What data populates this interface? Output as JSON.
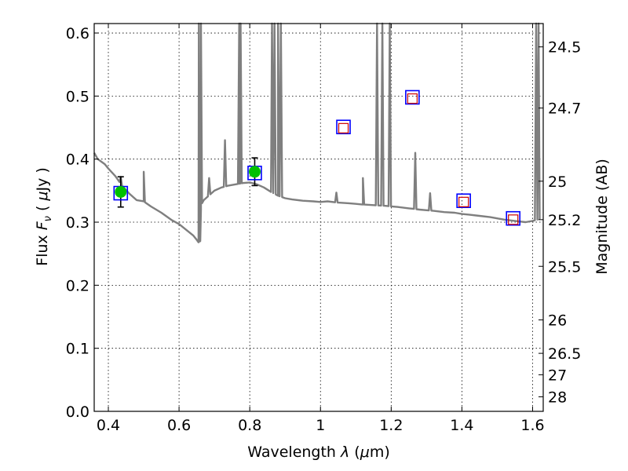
{
  "chart_data": {
    "type": "scatter",
    "title": "",
    "xlabel_prefix": "Wavelength ",
    "xlabel_var": "λ",
    "xlabel_unit_open": " (",
    "xlabel_unit_mu": "μ",
    "xlabel_unit_close": "m)",
    "ylabel_prefix": "Flux  ",
    "ylabel_var": "F",
    "ylabel_sub": "ν",
    "ylabel_unit_open": "  ( ",
    "ylabel_unit_mu": "μ",
    "ylabel_unit_close": "Jy )",
    "y2label": "Magnitude (AB)",
    "xlim": [
      0.36,
      1.63
    ],
    "ylim": [
      0.0,
      0.615
    ],
    "grid": true,
    "grid_style": "dotted",
    "xticks": [
      0.4,
      0.6,
      0.8,
      1.0,
      1.2,
      1.4,
      1.6
    ],
    "xtick_labels": [
      "0.4",
      "0.6",
      "0.8",
      "1",
      "1.2",
      "1.4",
      "1.6"
    ],
    "yticks": [
      0.0,
      0.1,
      0.2,
      0.3,
      0.4,
      0.5,
      0.6
    ],
    "ytick_labels": [
      "0.0",
      "0.1",
      "0.2",
      "0.3",
      "0.4",
      "0.5",
      "0.6"
    ],
    "y2ticks": [
      {
        "label": "24.5",
        "flux": 0.578
      },
      {
        "label": "24.7",
        "flux": 0.481
      },
      {
        "label": "25",
        "flux": 0.365
      },
      {
        "label": "25.2",
        "flux": 0.304
      },
      {
        "label": "25.5",
        "flux": 0.23
      },
      {
        "label": "26",
        "flux": 0.145
      },
      {
        "label": "26.5",
        "flux": 0.092
      },
      {
        "label": "27",
        "flux": 0.058
      },
      {
        "label": "28",
        "flux": 0.023
      }
    ],
    "colors": {
      "model": "#7f7f7f",
      "observed": "#00c000",
      "model_box": "#0000ff",
      "predicted": "#cc0000",
      "errorbar": "#000000",
      "grid": "#000000"
    },
    "model_spectrum": {
      "name": "",
      "x": [
        0.36,
        0.365,
        0.37,
        0.375,
        0.38,
        0.39,
        0.4,
        0.42,
        0.44,
        0.46,
        0.48,
        0.5,
        0.52,
        0.55,
        0.58,
        0.6,
        0.62,
        0.64,
        0.65,
        0.655,
        0.66,
        0.662,
        0.665,
        0.67,
        0.68,
        0.7,
        0.72,
        0.74,
        0.76,
        0.78,
        0.8,
        0.82,
        0.84,
        0.86,
        0.88,
        0.9,
        0.92,
        0.95,
        0.98,
        1.0,
        1.02,
        1.05,
        1.08,
        1.1,
        1.12,
        1.15,
        1.18,
        1.2,
        1.22,
        1.25,
        1.28,
        1.3,
        1.32,
        1.35,
        1.38,
        1.4,
        1.42,
        1.45,
        1.48,
        1.5,
        1.52,
        1.55,
        1.58,
        1.6,
        1.62
      ],
      "y": [
        0.41,
        0.405,
        0.4,
        0.398,
        0.396,
        0.392,
        0.385,
        0.373,
        0.357,
        0.345,
        0.335,
        0.333,
        0.325,
        0.315,
        0.303,
        0.297,
        0.288,
        0.279,
        0.272,
        0.268,
        0.27,
        0.32,
        0.33,
        0.335,
        0.34,
        0.35,
        0.355,
        0.358,
        0.36,
        0.362,
        0.363,
        0.36,
        0.355,
        0.348,
        0.342,
        0.338,
        0.336,
        0.334,
        0.333,
        0.332,
        0.333,
        0.331,
        0.33,
        0.329,
        0.328,
        0.327,
        0.326,
        0.325,
        0.324,
        0.322,
        0.32,
        0.319,
        0.318,
        0.316,
        0.315,
        0.313,
        0.312,
        0.31,
        0.308,
        0.306,
        0.304,
        0.302,
        0.3,
        0.302,
        0.305
      ],
      "spikes": [
        {
          "x": 0.435,
          "peak": 0.372
        },
        {
          "x": 0.5,
          "peak": 0.38
        },
        {
          "x": 0.656,
          "peak": 0.62
        },
        {
          "x": 0.662,
          "peak": 0.62
        },
        {
          "x": 0.685,
          "peak": 0.37
        },
        {
          "x": 0.73,
          "peak": 0.43
        },
        {
          "x": 0.77,
          "peak": 0.62
        },
        {
          "x": 0.774,
          "peak": 0.62
        },
        {
          "x": 0.863,
          "peak": 0.62
        },
        {
          "x": 0.87,
          "peak": 0.62
        },
        {
          "x": 0.88,
          "peak": 0.62
        },
        {
          "x": 0.888,
          "peak": 0.62
        },
        {
          "x": 1.045,
          "peak": 0.347
        },
        {
          "x": 1.12,
          "peak": 0.37
        },
        {
          "x": 1.16,
          "peak": 0.62
        },
        {
          "x": 1.175,
          "peak": 0.62
        },
        {
          "x": 1.196,
          "peak": 0.62
        },
        {
          "x": 1.268,
          "peak": 0.41
        },
        {
          "x": 1.31,
          "peak": 0.346
        },
        {
          "x": 1.61,
          "peak": 0.62
        },
        {
          "x": 1.617,
          "peak": 0.62
        }
      ]
    },
    "observed": {
      "name": "",
      "points": [
        {
          "x": 0.435,
          "y": 0.348,
          "err": 0.024
        },
        {
          "x": 0.814,
          "y": 0.38,
          "err": 0.022
        }
      ]
    },
    "model_boxes": {
      "name": "",
      "points": [
        {
          "x": 0.435,
          "y": 0.346
        },
        {
          "x": 0.814,
          "y": 0.378
        },
        {
          "x": 1.065,
          "y": 0.451
        },
        {
          "x": 1.26,
          "y": 0.498
        },
        {
          "x": 1.405,
          "y": 0.334
        },
        {
          "x": 1.545,
          "y": 0.306
        }
      ]
    },
    "predicted": {
      "name": "",
      "points": [
        {
          "x": 1.065,
          "y": 0.449
        },
        {
          "x": 1.26,
          "y": 0.496
        },
        {
          "x": 1.405,
          "y": 0.332
        },
        {
          "x": 1.545,
          "y": 0.304
        }
      ]
    }
  }
}
